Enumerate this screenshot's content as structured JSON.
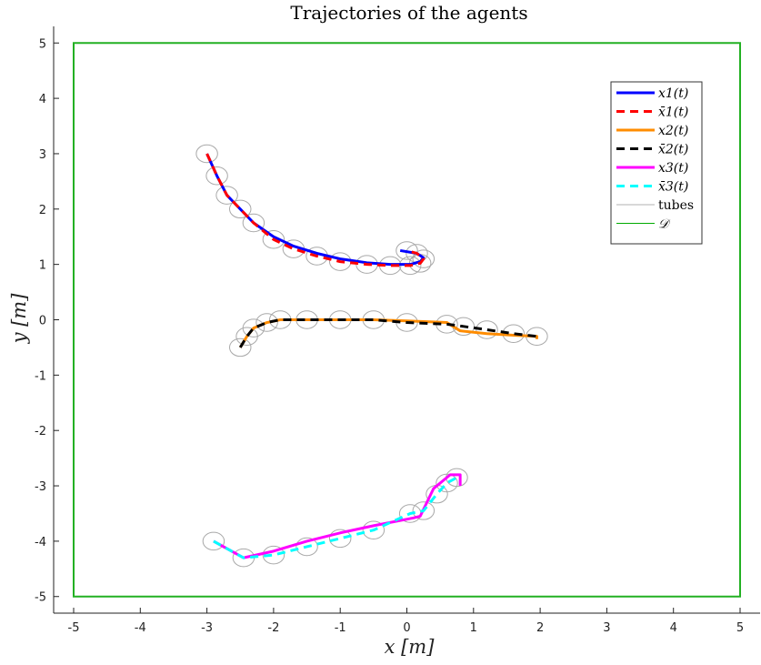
{
  "chart_data": {
    "type": "line",
    "title": "Trajectories of the agents",
    "xlabel": "x [m]",
    "ylabel": "y [m]",
    "xlim": [
      -5.3,
      5.3
    ],
    "ylim": [
      -5.3,
      5.3
    ],
    "xticks": [
      "-5",
      "-4",
      "-3",
      "-2",
      "-1",
      "0",
      "1",
      "2",
      "3",
      "4",
      "5"
    ],
    "yticks": [
      "-5",
      "-4",
      "-3",
      "-2",
      "-1",
      "0",
      "1",
      "2",
      "3",
      "4",
      "5"
    ],
    "grid": false,
    "legend_position": "top-right",
    "domain_rect": {
      "xmin": -5,
      "xmax": 5,
      "ymin": -5,
      "ymax": 5
    },
    "tube_radius": 0.16,
    "series": [
      {
        "name": "x1(t)",
        "color": "#0000ff",
        "dash": "solid",
        "x": [
          -3.0,
          -2.85,
          -2.7,
          -2.5,
          -2.3,
          -2.0,
          -1.7,
          -1.35,
          -1.0,
          -0.6,
          -0.25,
          0.05,
          0.2,
          0.25,
          0.15,
          -0.1
        ],
        "y": [
          3.0,
          2.6,
          2.25,
          2.0,
          1.75,
          1.5,
          1.33,
          1.2,
          1.1,
          1.03,
          1.0,
          1.0,
          1.05,
          1.12,
          1.2,
          1.25
        ]
      },
      {
        "name": "x̄1(t)",
        "color": "#ff0000",
        "dash": "dashed",
        "x": [
          -3.0,
          -2.85,
          -2.7,
          -2.5,
          -2.3,
          -2.0,
          -1.7,
          -1.35,
          -1.0,
          -0.6,
          -0.25,
          0.05,
          0.2,
          0.25,
          0.15,
          0.0
        ],
        "y": [
          3.0,
          2.6,
          2.25,
          2.0,
          1.75,
          1.45,
          1.28,
          1.15,
          1.05,
          1.0,
          0.98,
          0.98,
          1.02,
          1.1,
          1.2,
          1.25
        ]
      },
      {
        "name": "x2(t)",
        "color": "#ff8c00",
        "dash": "solid",
        "x": [
          -2.5,
          -2.4,
          -2.3,
          -2.1,
          -1.9,
          -1.5,
          -1.0,
          -0.5,
          0.0,
          0.6,
          0.8,
          1.2,
          1.6,
          1.95,
          1.95
        ],
        "y": [
          -0.5,
          -0.3,
          -0.15,
          -0.05,
          0.0,
          0.0,
          0.0,
          0.0,
          -0.02,
          -0.05,
          -0.2,
          -0.25,
          -0.28,
          -0.3,
          -0.35
        ]
      },
      {
        "name": "x̄2(t)",
        "color": "#000000",
        "dash": "dashed",
        "x": [
          -2.5,
          -2.4,
          -2.3,
          -2.1,
          -1.9,
          -1.5,
          -1.0,
          -0.5,
          0.0,
          0.6,
          0.85,
          1.2,
          1.6,
          1.95
        ],
        "y": [
          -0.5,
          -0.3,
          -0.15,
          -0.05,
          0.0,
          0.0,
          0.0,
          0.0,
          -0.05,
          -0.08,
          -0.12,
          -0.18,
          -0.25,
          -0.3
        ]
      },
      {
        "name": "x3(t)",
        "color": "#ff00ff",
        "dash": "solid",
        "x": [
          -2.9,
          -2.45,
          -2.0,
          -1.5,
          -1.0,
          -0.5,
          0.1,
          0.2,
          0.4,
          0.65,
          0.8,
          0.8
        ],
        "y": [
          -4.0,
          -4.3,
          -4.18,
          -4.0,
          -3.85,
          -3.72,
          -3.58,
          -3.55,
          -3.05,
          -2.8,
          -2.8,
          -3.0
        ]
      },
      {
        "name": "x̄3(t)",
        "color": "#00ffff",
        "dash": "dashed",
        "x": [
          -2.9,
          -2.45,
          -2.0,
          -1.5,
          -1.0,
          -0.5,
          0.05,
          0.25,
          0.45,
          0.6,
          0.75
        ],
        "y": [
          -4.0,
          -4.3,
          -4.25,
          -4.1,
          -3.95,
          -3.8,
          -3.5,
          -3.45,
          -3.15,
          -2.95,
          -2.85
        ]
      }
    ],
    "legend": [
      {
        "label": "x1(t)",
        "color": "#0000ff",
        "dash": "solid"
      },
      {
        "label": "x̄1(t)",
        "color": "#ff0000",
        "dash": "dashed"
      },
      {
        "label": "x2(t)",
        "color": "#ff8c00",
        "dash": "solid"
      },
      {
        "label": "x̄2(t)",
        "color": "#000000",
        "dash": "dashed"
      },
      {
        "label": "x3(t)",
        "color": "#ff00ff",
        "dash": "solid"
      },
      {
        "label": "x̄3(t)",
        "color": "#00ffff",
        "dash": "dashed"
      },
      {
        "label": "tubes",
        "color": "#b0b0b0",
        "dash": "solid"
      },
      {
        "label": "𝒟",
        "color": "#00aa00",
        "dash": "solid"
      }
    ]
  }
}
